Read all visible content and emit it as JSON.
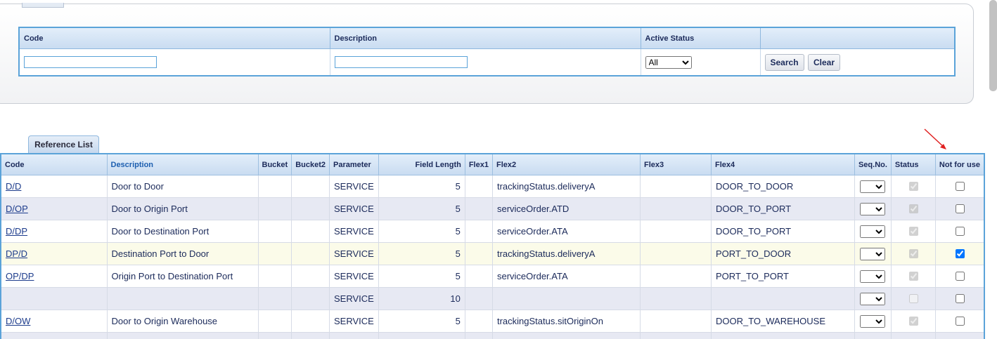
{
  "search_panel": {
    "headers": [
      "Code",
      "Description",
      "Active Status"
    ],
    "active_status": "All",
    "buttons": [
      "Search",
      "Clear"
    ]
  },
  "reference_list": {
    "tab": "Reference List",
    "columns": [
      "Code",
      "Description",
      "Bucket",
      "Bucket2",
      "Parameter",
      "Field Length",
      "Flex1",
      "Flex2",
      "Flex3",
      "Flex4",
      "Seq.No.",
      "Status",
      "Not for use"
    ],
    "rows": [
      {
        "code": "D/D",
        "description": "Door to Door",
        "parameter": "SERVICE",
        "field_length": 5,
        "flex2": "trackingStatus.deliveryA",
        "flex4": "DOOR_TO_DOOR",
        "status_checked": true,
        "not_for_use_checked": false
      },
      {
        "code": "D/OP",
        "description": "Door to Origin Port",
        "parameter": "SERVICE",
        "field_length": 5,
        "flex2": "serviceOrder.ATD",
        "flex4": "DOOR_TO_PORT",
        "status_checked": true,
        "not_for_use_checked": false
      },
      {
        "code": "D/DP",
        "description": "Door to Destination Port",
        "parameter": "SERVICE",
        "field_length": 5,
        "flex2": "serviceOrder.ATA",
        "flex4": "DOOR_TO_PORT",
        "status_checked": true,
        "not_for_use_checked": false
      },
      {
        "code": "DP/D",
        "description": "Destination Port to Door",
        "parameter": "SERVICE",
        "field_length": 5,
        "flex2": "trackingStatus.deliveryA",
        "flex4": "PORT_TO_DOOR",
        "status_checked": true,
        "not_for_use_checked": true,
        "highlighted": true
      },
      {
        "code": "OP/DP",
        "description": "Origin Port to Destination Port",
        "parameter": "SERVICE",
        "field_length": 5,
        "flex2": "serviceOrder.ATA",
        "flex4": "PORT_TO_PORT",
        "status_checked": true,
        "not_for_use_checked": false
      },
      {
        "code": null,
        "description": null,
        "parameter": "SERVICE",
        "field_length": 10,
        "flex2": null,
        "flex4": null,
        "status_checked": false,
        "not_for_use_checked": false
      },
      {
        "code": "D/OW",
        "description": "Door to Origin Warehouse",
        "parameter": "SERVICE",
        "field_length": 5,
        "flex2": "trackingStatus.sitOriginOn",
        "flex4": "DOOR_TO_WAREHOUSE",
        "status_checked": true,
        "not_for_use_checked": false
      }
    ]
  }
}
